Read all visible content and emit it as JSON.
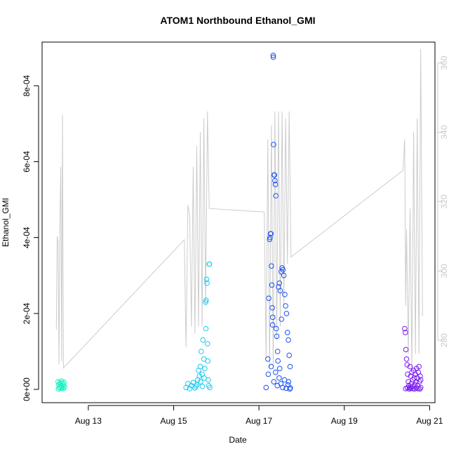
{
  "chart_data": {
    "type": "scatter",
    "title": "ATOM1 Northbound Ethanol_GMI",
    "xlabel": "Date",
    "ylabel": "Ethanol_GMI",
    "xlim": [
      "2018-08-11T22:00",
      "2018-08-21T03:00"
    ],
    "ylim": [
      -3.5e-05,
      0.000915
    ],
    "y2lim": [
      262,
      366
    ],
    "x_ticks": [
      {
        "date": "2018-08-13T00:00",
        "label": "Aug 13"
      },
      {
        "date": "2018-08-15T00:00",
        "label": "Aug 15"
      },
      {
        "date": "2018-08-17T00:00",
        "label": "Aug 17"
      },
      {
        "date": "2018-08-19T00:00",
        "label": "Aug 19"
      },
      {
        "date": "2018-08-21T00:00",
        "label": "Aug 21"
      }
    ],
    "y_ticks": [
      {
        "value": 0,
        "label": "0e+00"
      },
      {
        "value": 0.0002,
        "label": "2e-04"
      },
      {
        "value": 0.0004,
        "label": "4e-04"
      },
      {
        "value": 0.0006,
        "label": "6e-04"
      },
      {
        "value": 0.0008,
        "label": "8e-04"
      }
    ],
    "y2_ticks": [
      {
        "value": 280,
        "label": "280"
      },
      {
        "value": 300,
        "label": "300"
      },
      {
        "value": 320,
        "label": "320"
      },
      {
        "value": 340,
        "label": "340"
      },
      {
        "value": 360,
        "label": "360"
      }
    ],
    "series": [
      {
        "color": "#1af0c0",
        "points": [
          [
            "2018-08-12T07:00",
            2e-05
          ],
          [
            "2018-08-12T07:20",
            1.2e-05
          ],
          [
            "2018-08-12T07:40",
            5e-06
          ],
          [
            "2018-08-12T08:00",
            1.8e-05
          ],
          [
            "2018-08-12T08:20",
            3e-06
          ],
          [
            "2018-08-12T08:40",
            1e-05
          ],
          [
            "2018-08-12T09:00",
            2.2e-05
          ],
          [
            "2018-08-12T09:20",
            8e-06
          ],
          [
            "2018-08-12T09:40",
            1.5e-05
          ],
          [
            "2018-08-12T10:00",
            2e-06
          ],
          [
            "2018-08-12T10:20",
            1.9e-05
          ],
          [
            "2018-08-12T10:40",
            6e-06
          ],
          [
            "2018-08-12T07:10",
            1e-06
          ],
          [
            "2018-08-12T08:10",
            1.4e-05
          ],
          [
            "2018-08-12T09:10",
            4e-06
          ],
          [
            "2018-08-12T10:10",
            1.1e-05
          ]
        ]
      },
      {
        "color": "#1ac8f0",
        "points": [
          [
            "2018-08-15T07:00",
            5e-06
          ],
          [
            "2018-08-15T08:00",
            1.5e-05
          ],
          [
            "2018-08-15T09:00",
            2e-06
          ],
          [
            "2018-08-15T10:00",
            1e-05
          ],
          [
            "2018-08-15T11:00",
            1.8e-05
          ],
          [
            "2018-08-15T12:00",
            4e-06
          ],
          [
            "2018-08-15T13:00",
            1.2e-05
          ],
          [
            "2018-08-15T14:00",
            5e-05
          ],
          [
            "2018-08-15T14:30",
            3.5e-05
          ],
          [
            "2018-08-15T15:00",
            6e-05
          ],
          [
            "2018-08-15T15:30",
            0.0001
          ],
          [
            "2018-08-15T16:00",
            4e-05
          ],
          [
            "2018-08-15T16:30",
            0.00013
          ],
          [
            "2018-08-15T17:00",
            8e-05
          ],
          [
            "2018-08-15T17:30",
            5.5e-05
          ],
          [
            "2018-08-15T18:00",
            0.00023
          ],
          [
            "2018-08-15T18:15",
            0.000235
          ],
          [
            "2018-08-15T18:30",
            0.00029
          ],
          [
            "2018-08-15T18:45",
            0.00028
          ],
          [
            "2018-08-15T19:00",
            0.00012
          ],
          [
            "2018-08-15T19:15",
            7.5e-05
          ],
          [
            "2018-08-15T19:30",
            2.5e-05
          ],
          [
            "2018-08-15T19:45",
            1e-05
          ],
          [
            "2018-08-15T20:00",
            0.00033
          ],
          [
            "2018-08-15T20:10",
            0.00033
          ],
          [
            "2018-08-15T20:20",
            5e-06
          ],
          [
            "2018-08-15T15:10",
            2e-05
          ],
          [
            "2018-08-15T16:10",
            8e-06
          ],
          [
            "2018-08-15T17:10",
            3e-05
          ],
          [
            "2018-08-15T18:10",
            0.00016
          ],
          [
            "2018-08-15T13:30",
            2.5e-05
          ],
          [
            "2018-08-15T12:30",
            8e-06
          ]
        ]
      },
      {
        "color": "#1a50f0",
        "points": [
          [
            "2018-08-17T04:00",
            5e-06
          ],
          [
            "2018-08-17T05:00",
            8e-05
          ],
          [
            "2018-08-17T05:30",
            0.00024
          ],
          [
            "2018-08-17T06:00",
            0.000395
          ],
          [
            "2018-08-17T06:15",
            0.0004
          ],
          [
            "2018-08-17T06:30",
            0.00041
          ],
          [
            "2018-08-17T06:45",
            0.00041
          ],
          [
            "2018-08-17T07:00",
            0.000325
          ],
          [
            "2018-08-17T07:15",
            0.000275
          ],
          [
            "2018-08-17T07:30",
            0.000215
          ],
          [
            "2018-08-17T07:45",
            0.00019
          ],
          [
            "2018-08-17T08:00",
            0.00088
          ],
          [
            "2018-08-17T08:05",
            0.000875
          ],
          [
            "2018-08-17T08:15",
            0.000645
          ],
          [
            "2018-08-17T08:30",
            0.000565
          ],
          [
            "2018-08-17T08:45",
            0.000565
          ],
          [
            "2018-08-17T09:00",
            0.00055
          ],
          [
            "2018-08-17T09:15",
            0.00054
          ],
          [
            "2018-08-17T09:30",
            0.00051
          ],
          [
            "2018-08-17T09:45",
            0.00016
          ],
          [
            "2018-08-17T10:00",
            0.00014
          ],
          [
            "2018-08-17T10:30",
            0.0001
          ],
          [
            "2018-08-17T11:00",
            0.00027
          ],
          [
            "2018-08-17T11:30",
            0.00028
          ],
          [
            "2018-08-17T12:00",
            0.00026
          ],
          [
            "2018-08-17T12:30",
            0.00031
          ],
          [
            "2018-08-17T13:00",
            0.00032
          ],
          [
            "2018-08-17T13:30",
            0.000315
          ],
          [
            "2018-08-17T14:00",
            0.0003
          ],
          [
            "2018-08-17T14:30",
            0.00025
          ],
          [
            "2018-08-17T15:00",
            0.00022
          ],
          [
            "2018-08-17T15:30",
            0.0002
          ],
          [
            "2018-08-17T16:00",
            0.00015
          ],
          [
            "2018-08-17T16:30",
            0.00013
          ],
          [
            "2018-08-17T17:00",
            9e-05
          ],
          [
            "2018-08-17T17:30",
            6e-05
          ],
          [
            "2018-08-17T05:15",
            4e-05
          ],
          [
            "2018-08-17T06:50",
            6e-05
          ],
          [
            "2018-08-17T08:20",
            2e-05
          ],
          [
            "2018-08-17T09:20",
            4.5e-05
          ],
          [
            "2018-08-17T10:20",
            1e-05
          ],
          [
            "2018-08-17T11:20",
            3e-05
          ],
          [
            "2018-08-17T12:20",
            1.5e-05
          ],
          [
            "2018-08-17T13:20",
            5e-06
          ],
          [
            "2018-08-17T14:20",
            2.5e-05
          ],
          [
            "2018-08-17T15:20",
            3e-06
          ],
          [
            "2018-08-17T16:20",
            1.2e-05
          ],
          [
            "2018-08-17T17:20",
            1e-06
          ],
          [
            "2018-08-17T07:40",
            0.00017
          ],
          [
            "2018-08-17T10:40",
            7.5e-05
          ],
          [
            "2018-08-17T11:40",
            5.5e-05
          ],
          [
            "2018-08-17T12:40",
            0.000185
          ],
          [
            "2018-08-17T16:40",
            2e-05
          ],
          [
            "2018-08-17T17:40",
            4e-06
          ]
        ]
      },
      {
        "color": "#7a1af0",
        "points": [
          [
            "2018-08-20T10:00",
            0.00016
          ],
          [
            "2018-08-20T10:20",
            0.00015
          ],
          [
            "2018-08-20T10:40",
            0.000105
          ],
          [
            "2018-08-20T11:00",
            8e-05
          ],
          [
            "2018-08-20T11:20",
            6.5e-05
          ],
          [
            "2018-08-20T11:40",
            4e-05
          ],
          [
            "2018-08-20T12:00",
            2e-05
          ],
          [
            "2018-08-20T12:20",
            1e-05
          ],
          [
            "2018-08-20T12:40",
            5e-06
          ],
          [
            "2018-08-20T13:00",
            6e-05
          ],
          [
            "2018-08-20T13:20",
            3.5e-05
          ],
          [
            "2018-08-20T13:40",
            1.5e-05
          ],
          [
            "2018-08-20T14:00",
            4.5e-05
          ],
          [
            "2018-08-20T14:20",
            8e-06
          ],
          [
            "2018-08-20T14:40",
            2.5e-05
          ],
          [
            "2018-08-20T15:00",
            5e-05
          ],
          [
            "2018-08-20T15:20",
            3e-05
          ],
          [
            "2018-08-20T15:40",
            1.2e-05
          ],
          [
            "2018-08-20T16:00",
            4e-05
          ],
          [
            "2018-08-20T16:20",
            2e-05
          ],
          [
            "2018-08-20T16:40",
            5.5e-05
          ],
          [
            "2018-08-20T17:00",
            3e-05
          ],
          [
            "2018-08-20T17:20",
            1e-05
          ],
          [
            "2018-08-20T17:40",
            4.5e-05
          ],
          [
            "2018-08-20T18:00",
            6e-05
          ],
          [
            "2018-08-20T18:20",
            2e-05
          ],
          [
            "2018-08-20T18:40",
            3.5e-05
          ],
          [
            "2018-08-20T19:00",
            5e-06
          ],
          [
            "2018-08-20T10:30",
            2e-06
          ],
          [
            "2018-08-20T11:30",
            4e-06
          ],
          [
            "2018-08-20T12:30",
            1e-06
          ],
          [
            "2018-08-20T13:30",
            3e-06
          ],
          [
            "2018-08-20T14:30",
            2e-06
          ],
          [
            "2018-08-20T15:30",
            1e-06
          ],
          [
            "2018-08-20T16:30",
            4e-06
          ],
          [
            "2018-08-20T17:30",
            2e-06
          ],
          [
            "2018-08-20T18:30",
            1e-06
          ],
          [
            "2018-08-20T19:00",
            2.5e-05
          ]
        ]
      }
    ],
    "secondary_line": {
      "color": "#cccccc",
      "points": [
        [
          "2018-08-12T06:00",
          283
        ],
        [
          "2018-08-12T06:30",
          310
        ],
        [
          "2018-08-12T07:00",
          308
        ],
        [
          "2018-08-12T07:30",
          273
        ],
        [
          "2018-08-12T08:00",
          312
        ],
        [
          "2018-08-12T08:30",
          330
        ],
        [
          "2018-08-12T09:00",
          274
        ],
        [
          "2018-08-12T09:30",
          345
        ],
        [
          "2018-08-12T10:00",
          272
        ],
        [
          "2018-08-15T06:00",
          309
        ],
        [
          "2018-08-15T07:00",
          278
        ],
        [
          "2018-08-15T08:00",
          319
        ],
        [
          "2018-08-15T09:00",
          316
        ],
        [
          "2018-08-15T10:00",
          284
        ],
        [
          "2018-08-15T11:00",
          330
        ],
        [
          "2018-08-15T12:00",
          282
        ],
        [
          "2018-08-15T13:00",
          336
        ],
        [
          "2018-08-15T14:00",
          284
        ],
        [
          "2018-08-15T15:00",
          340
        ],
        [
          "2018-08-15T16:00",
          284
        ],
        [
          "2018-08-15T17:00",
          344
        ],
        [
          "2018-08-15T18:00",
          290
        ],
        [
          "2018-08-15T19:00",
          346
        ],
        [
          "2018-08-15T20:00",
          318
        ],
        [
          "2018-08-17T03:00",
          317
        ],
        [
          "2018-08-17T04:00",
          275
        ],
        [
          "2018-08-17T05:00",
          338
        ],
        [
          "2018-08-17T06:00",
          272
        ],
        [
          "2018-08-17T07:00",
          342
        ],
        [
          "2018-08-17T08:00",
          272
        ],
        [
          "2018-08-17T09:00",
          346
        ],
        [
          "2018-08-17T10:00",
          280
        ],
        [
          "2018-08-17T11:00",
          346
        ],
        [
          "2018-08-17T12:00",
          284
        ],
        [
          "2018-08-17T13:00",
          346
        ],
        [
          "2018-08-17T14:00",
          290
        ],
        [
          "2018-08-17T15:00",
          344
        ],
        [
          "2018-08-17T16:00",
          302
        ],
        [
          "2018-08-17T17:00",
          346
        ],
        [
          "2018-08-17T18:00",
          304
        ],
        [
          "2018-08-20T09:00",
          329
        ],
        [
          "2018-08-20T10:00",
          338
        ],
        [
          "2018-08-20T10:30",
          290
        ],
        [
          "2018-08-20T11:00",
          312
        ],
        [
          "2018-08-20T12:00",
          276
        ],
        [
          "2018-08-20T13:00",
          318
        ],
        [
          "2018-08-20T14:00",
          272
        ],
        [
          "2018-08-20T15:00",
          340
        ],
        [
          "2018-08-20T16:00",
          276
        ],
        [
          "2018-08-20T17:00",
          344
        ],
        [
          "2018-08-20T18:00",
          276
        ],
        [
          "2018-08-20T19:00",
          364
        ],
        [
          "2018-08-20T20:00",
          287
        ]
      ]
    }
  }
}
